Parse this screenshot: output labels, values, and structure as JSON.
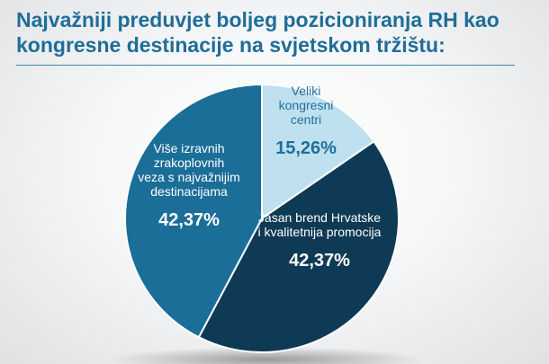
{
  "title_line1": "Najvažniji preduvjet boljeg pozicioniranja RH kao",
  "title_line2": "kongresne destinacije na svjetskom tržištu:",
  "colors": {
    "title": "#1f6d99",
    "slice_light": "#bfe0ef",
    "slice_dark": "#0f3a55",
    "slice_mid": "#1b6e98",
    "label_light": "#1e6f9b"
  },
  "chart_data": {
    "type": "pie",
    "slices": [
      {
        "label_lines": [
          "Veliki",
          "kongresni",
          "centri"
        ],
        "value": 15.26,
        "value_text": "15,26%"
      },
      {
        "label_lines": [
          "Jasan brend Hrvatske",
          "i kvalitetnija promocija"
        ],
        "value": 42.37,
        "value_text": "42,37%"
      },
      {
        "label_lines": [
          "Više izravnih",
          "zrakoplovnih",
          "veza s najvažnijim",
          "destinacijama"
        ],
        "value": 42.37,
        "value_text": "42,37%"
      }
    ]
  }
}
